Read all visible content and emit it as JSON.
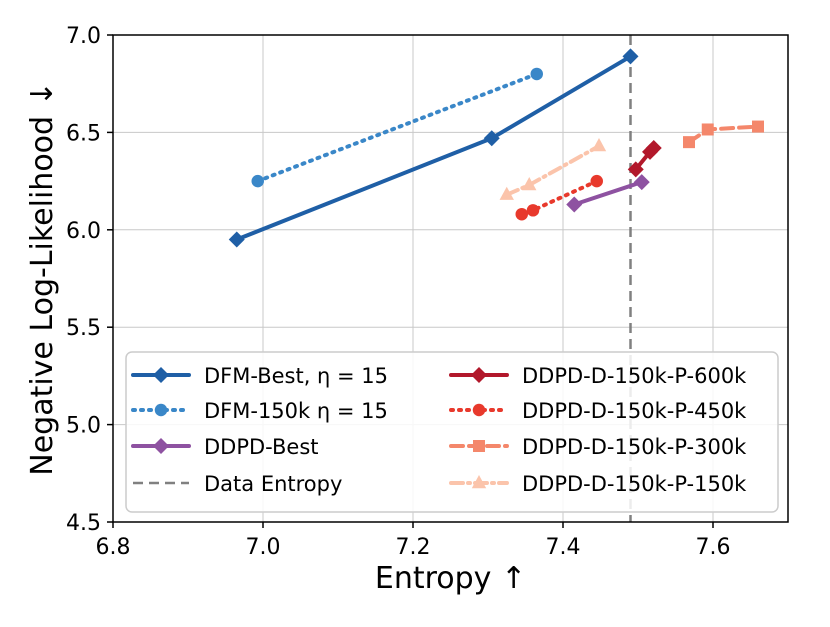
{
  "chart_data": {
    "type": "line",
    "title": "",
    "xlabel": "Entropy ↑",
    "ylabel": "Negative Log-Likelihood ↓",
    "xlim": [
      6.8,
      7.7
    ],
    "ylim": [
      4.5,
      7.0
    ],
    "xticks": [
      6.8,
      7.0,
      7.2,
      7.4,
      7.6
    ],
    "yticks": [
      4.5,
      5.0,
      5.5,
      6.0,
      6.5,
      7.0
    ],
    "xtick_labels": [
      "6.8",
      "7.0",
      "7.2",
      "7.4",
      "7.6"
    ],
    "ytick_labels": [
      "4.5",
      "5.0",
      "5.5",
      "6.0",
      "6.5",
      "7.0"
    ],
    "grid": true,
    "legend_position": "lower-center",
    "vline": {
      "name": "Data Entropy",
      "x": 7.49,
      "color": "#808080",
      "style": "dashed"
    },
    "series": [
      {
        "name": "DFM-Best, η = 15",
        "color": "#1f5fa6",
        "marker": "diamond",
        "style": "solid",
        "points": [
          [
            6.965,
            5.95
          ],
          [
            7.305,
            6.47
          ],
          [
            7.49,
            6.89
          ]
        ]
      },
      {
        "name": "DFM-150k η = 15",
        "color": "#3a87c8",
        "marker": "circle",
        "style": "dotted",
        "points": [
          [
            6.993,
            6.25
          ],
          [
            7.365,
            6.8
          ]
        ]
      },
      {
        "name": "DDPD-Best",
        "color": "#8e52a1",
        "marker": "diamond",
        "style": "solid",
        "points": [
          [
            7.415,
            6.13
          ],
          [
            7.505,
            6.245
          ]
        ]
      },
      {
        "name": "DDPD-D-150k-P-600k",
        "color": "#b2182b",
        "marker": "diamond",
        "style": "solid",
        "points": [
          [
            7.497,
            6.31
          ],
          [
            7.516,
            6.4
          ],
          [
            7.521,
            6.42
          ]
        ]
      },
      {
        "name": "DDPD-D-150k-P-450k",
        "color": "#e8392c",
        "marker": "circle",
        "style": "dotted",
        "points": [
          [
            7.345,
            6.08
          ],
          [
            7.36,
            6.1
          ],
          [
            7.445,
            6.25
          ]
        ]
      },
      {
        "name": "DDPD-D-150k-P-300k",
        "color": "#f4876b",
        "marker": "square",
        "style": "dashed",
        "points": [
          [
            7.568,
            6.45
          ],
          [
            7.593,
            6.515
          ],
          [
            7.66,
            6.53
          ]
        ]
      },
      {
        "name": "DDPD-D-150k-P-150k",
        "color": "#fbc4ab",
        "marker": "triangle",
        "style": "dashdot",
        "points": [
          [
            7.325,
            6.18
          ],
          [
            7.355,
            6.23
          ],
          [
            7.448,
            6.43
          ]
        ]
      }
    ]
  }
}
